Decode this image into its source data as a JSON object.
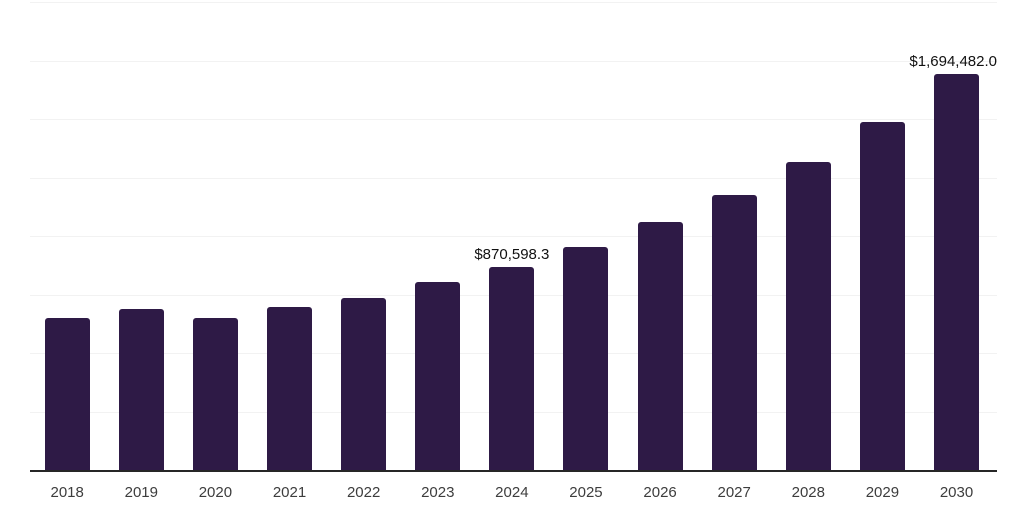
{
  "chart_data": {
    "type": "bar",
    "title": "",
    "categories": [
      "2018",
      "2019",
      "2020",
      "2021",
      "2022",
      "2023",
      "2024",
      "2025",
      "2026",
      "2027",
      "2028",
      "2029",
      "2030"
    ],
    "values": [
      650000,
      690000,
      653000,
      700000,
      739000,
      807000,
      870598.3,
      956000,
      1060000,
      1176000,
      1319000,
      1490000,
      1694482.0
    ],
    "data_labels": [
      null,
      null,
      null,
      null,
      null,
      null,
      "$870,598.3",
      null,
      null,
      null,
      null,
      null,
      "$1,694,482.0"
    ],
    "xlabel": "",
    "ylabel": "",
    "ylim": [
      0,
      2000000
    ],
    "grid_step": 250000,
    "grid": true,
    "y_axis_tick_labels_shown": false,
    "legend_position": "none",
    "colors": {
      "bar": "#2e1a46",
      "axis_line": "#262626",
      "gridline": "#f2f2f2",
      "tick_label": "#3d3d3d",
      "data_label": "#111111",
      "background": "#ffffff"
    }
  }
}
